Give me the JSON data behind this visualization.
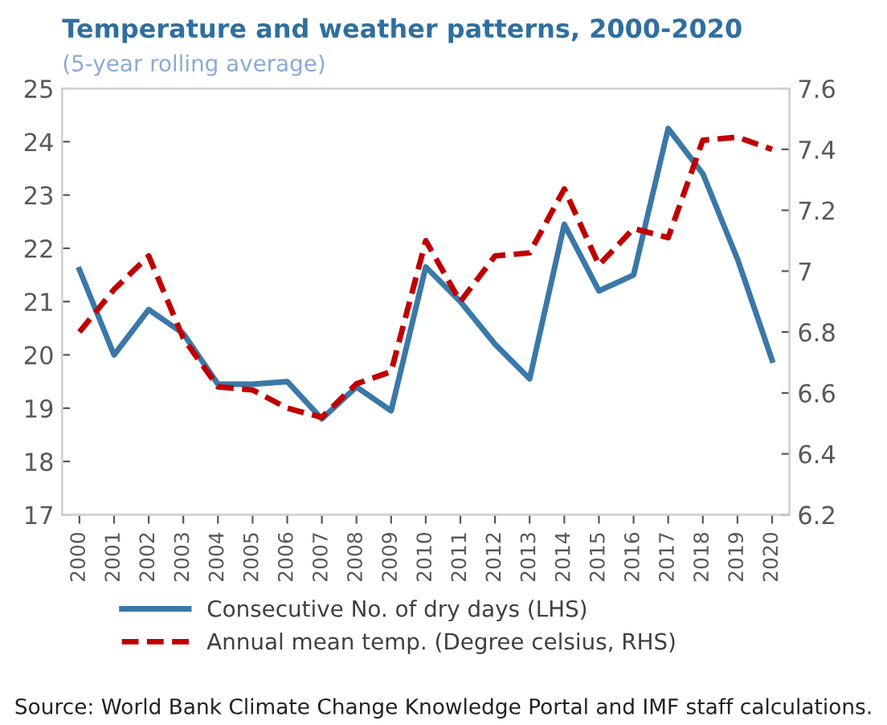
{
  "chart_data": {
    "type": "line",
    "title": "Temperature and weather patterns, 2000-2020",
    "subtitle": "(5-year rolling average)",
    "categories": [
      "2000",
      "2001",
      "2002",
      "2003",
      "2004",
      "2005",
      "2006",
      "2007",
      "2008",
      "2009",
      "2010",
      "2011",
      "2012",
      "2013",
      "2014",
      "2015",
      "2016",
      "2017",
      "2018",
      "2019",
      "2020"
    ],
    "series": [
      {
        "name": "Consecutive No. of dry days (LHS)",
        "color": "#3a78a8",
        "line_style": "solid",
        "values": [
          21.6,
          20.0,
          20.85,
          20.4,
          19.45,
          19.45,
          19.5,
          18.8,
          19.4,
          18.95,
          21.65,
          21.0,
          20.2,
          19.55,
          22.45,
          21.2,
          21.5,
          24.25,
          23.4,
          21.8,
          19.9
        ]
      },
      {
        "name": "Annual mean temp. (Degree celsius, RHS)",
        "color": "#c00000",
        "line_style": "dashed",
        "axis": "y2",
        "values": [
          6.8,
          6.94,
          7.05,
          6.78,
          6.62,
          6.61,
          6.55,
          6.52,
          6.63,
          6.67,
          7.1,
          6.9,
          7.05,
          7.06,
          7.27,
          7.02,
          7.14,
          7.11,
          7.43,
          7.44,
          7.4
        ]
      }
    ],
    "ylim": [
      17,
      25
    ],
    "yticks": [
      17,
      18,
      19,
      20,
      21,
      22,
      23,
      24,
      25
    ],
    "y2lim": [
      6.2,
      7.6
    ],
    "y2ticks": [
      6.2,
      6.4,
      6.6,
      6.8,
      {
        "value": 7.0,
        "label": "7"
      },
      7.2,
      7.4,
      7.6
    ],
    "grid": false,
    "legend": "bottom",
    "marker": "none",
    "annotations": [
      "Source: World Bank Climate Change Knowledge Portal and IMF staff calculations."
    ]
  }
}
